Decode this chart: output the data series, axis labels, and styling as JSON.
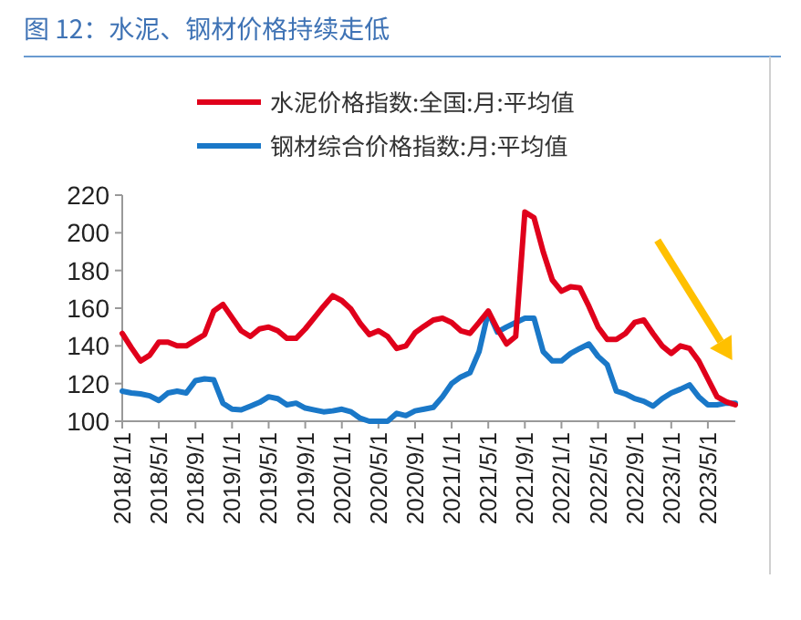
{
  "chart_data": {
    "type": "line",
    "title": "图 12：水泥、钢材价格持续走低",
    "x": [
      "2018-01",
      "2018-02",
      "2018-03",
      "2018-04",
      "2018-05",
      "2018-06",
      "2018-07",
      "2018-08",
      "2018-09",
      "2018-10",
      "2018-11",
      "2018-12",
      "2019-01",
      "2019-02",
      "2019-03",
      "2019-04",
      "2019-05",
      "2019-06",
      "2019-07",
      "2019-08",
      "2019-09",
      "2019-10",
      "2019-11",
      "2019-12",
      "2020-01",
      "2020-02",
      "2020-03",
      "2020-04",
      "2020-05",
      "2020-06",
      "2020-07",
      "2020-08",
      "2020-09",
      "2020-10",
      "2020-11",
      "2020-12",
      "2021-01",
      "2021-02",
      "2021-03",
      "2021-04",
      "2021-05",
      "2021-06",
      "2021-07",
      "2021-08",
      "2021-09",
      "2021-10",
      "2021-11",
      "2021-12",
      "2022-01",
      "2022-02",
      "2022-03",
      "2022-04",
      "2022-05",
      "2022-06",
      "2022-07",
      "2022-08",
      "2022-09",
      "2022-10",
      "2022-11",
      "2022-12",
      "2023-01",
      "2023-02",
      "2023-03",
      "2023-04",
      "2023-05",
      "2023-06",
      "2023-07",
      "2023-08"
    ],
    "series": [
      {
        "name": "水泥价格指数:全国:月:平均值",
        "color": "#e0001b",
        "values": [
          146.6,
          139,
          132,
          135,
          142,
          142,
          140,
          140,
          143,
          146,
          158.5,
          162,
          155,
          148,
          145,
          149,
          150,
          148,
          144,
          144,
          149,
          155,
          161,
          166.6,
          164,
          159.5,
          152,
          146,
          148,
          145,
          138.6,
          140,
          147,
          150.5,
          153.7,
          154.7,
          152.4,
          148,
          146.6,
          152.4,
          158.5,
          149,
          141,
          145,
          211,
          208,
          190,
          175,
          169,
          171.4,
          170.8,
          161,
          150,
          143.4,
          143.4,
          146.6,
          152.4,
          153.7,
          146.6,
          140,
          136,
          140,
          138.6,
          132,
          122.5,
          113,
          110.3,
          108.7
        ]
      },
      {
        "name": "钢材综合价格指数:月:平均值",
        "color": "#1a78c8",
        "values": [
          116,
          115,
          114.5,
          113.5,
          111,
          115,
          116,
          115,
          121.5,
          122.5,
          122,
          109.6,
          106.4,
          106,
          108,
          110,
          113,
          112,
          108.7,
          109.6,
          107,
          106,
          105,
          105.5,
          106.4,
          105,
          101.6,
          100,
          100,
          100,
          104.2,
          103,
          105.5,
          106.4,
          107.4,
          113,
          120,
          123.5,
          125.7,
          137,
          158,
          147.3,
          150,
          152.4,
          154.7,
          154.7,
          137,
          132,
          132,
          136,
          138.6,
          141,
          134.4,
          130,
          116,
          114.5,
          112,
          110.6,
          108,
          112,
          115,
          117,
          119.3,
          113,
          108.7,
          108.7,
          109.6,
          109.6
        ]
      }
    ],
    "xlim": [
      "2018-01",
      "2023-08"
    ],
    "xticks": [
      {
        "value": "2018-01",
        "label": "2018/1/1"
      },
      {
        "value": "2018-05",
        "label": "2018/5/1"
      },
      {
        "value": "2018-09",
        "label": "2018/9/1"
      },
      {
        "value": "2019-01",
        "label": "2019/1/1"
      },
      {
        "value": "2019-05",
        "label": "2019/5/1"
      },
      {
        "value": "2019-09",
        "label": "2019/9/1"
      },
      {
        "value": "2020-01",
        "label": "2020/1/1"
      },
      {
        "value": "2020-05",
        "label": "2020/5/1"
      },
      {
        "value": "2020-09",
        "label": "2020/9/1"
      },
      {
        "value": "2021-01",
        "label": "2021/1/1"
      },
      {
        "value": "2021-05",
        "label": "2021/5/1"
      },
      {
        "value": "2021-09",
        "label": "2021/9/1"
      },
      {
        "value": "2022-01",
        "label": "2022/1/1"
      },
      {
        "value": "2022-05",
        "label": "2022/5/1"
      },
      {
        "value": "2022-09",
        "label": "2022/9/1"
      },
      {
        "value": "2023-01",
        "label": "2023/1/1"
      },
      {
        "value": "2023-05",
        "label": "2023/5/1"
      }
    ],
    "ylim": [
      100,
      220
    ],
    "yticks": [
      100,
      120,
      140,
      160,
      180,
      200,
      220
    ],
    "grid": false,
    "legend": "top",
    "marker": "none",
    "line_style": "solid"
  }
}
